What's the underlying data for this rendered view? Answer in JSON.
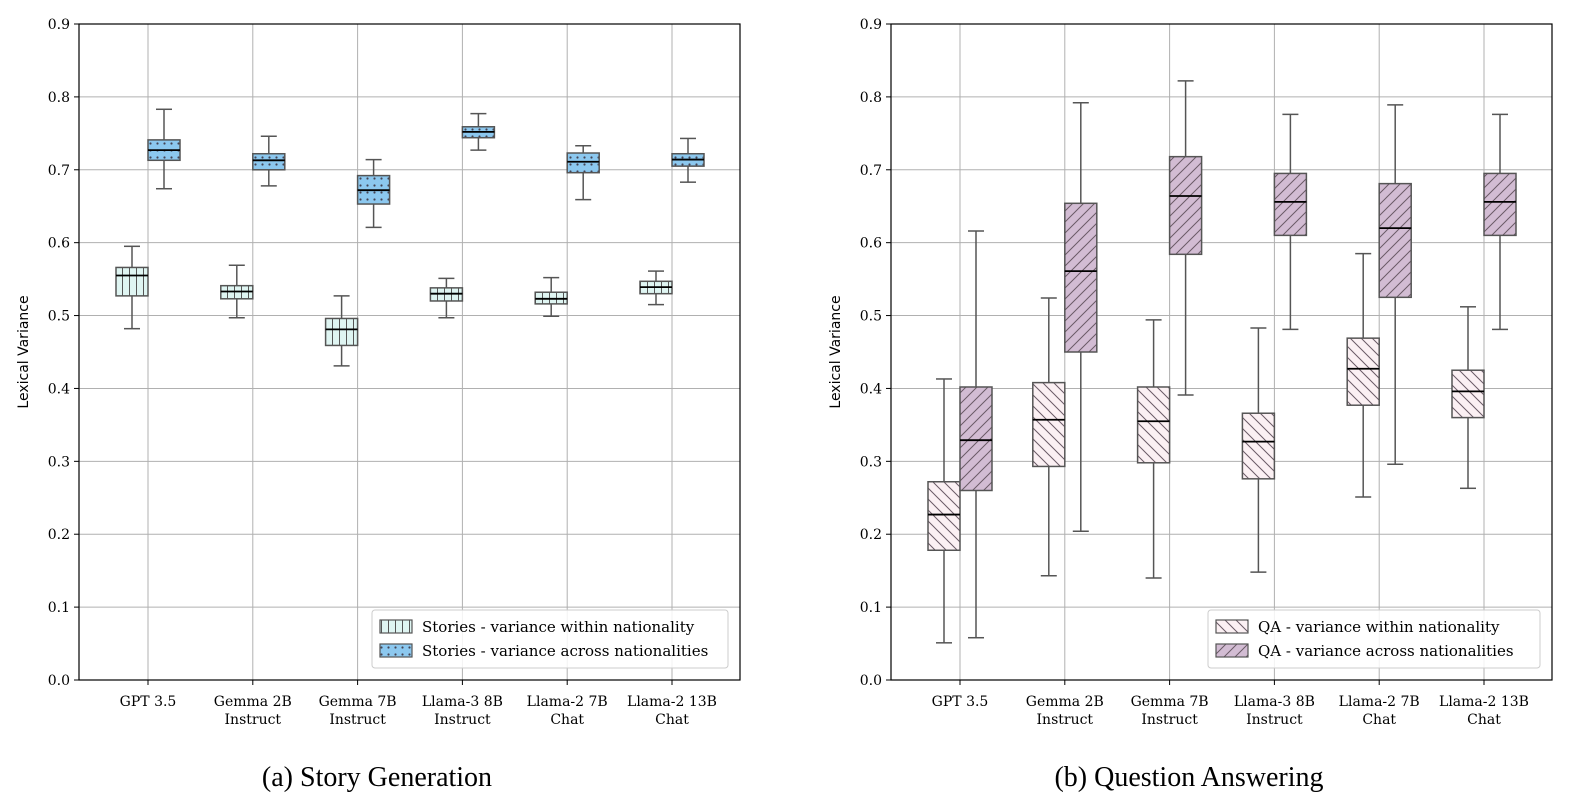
{
  "chart_data": [
    {
      "type": "boxplot",
      "caption": "(a) Story Generation",
      "ylabel": "Lexical Variance",
      "ylim": [
        0.0,
        0.9
      ],
      "yticks": [
        "0.0",
        "0.1",
        "0.2",
        "0.3",
        "0.4",
        "0.5",
        "0.6",
        "0.7",
        "0.8",
        "0.9"
      ],
      "grid": true,
      "legend_position": "lower-right",
      "categories": [
        [
          "GPT 3.5"
        ],
        [
          "Gemma 2B",
          "Instruct"
        ],
        [
          "Gemma 7B",
          "Instruct"
        ],
        [
          "Llama-3 8B",
          "Instruct"
        ],
        [
          "Llama-2 7B",
          "Chat"
        ],
        [
          "Llama-2 13B",
          "Chat"
        ]
      ],
      "series": [
        {
          "name": "Stories - variance within nationality",
          "fill": "#dff5f2",
          "hatch": "vertical",
          "boxes": [
            {
              "min": 0.482,
              "q1": 0.527,
              "median": 0.555,
              "q3": 0.566,
              "max": 0.595
            },
            {
              "min": 0.497,
              "q1": 0.523,
              "median": 0.533,
              "q3": 0.541,
              "max": 0.569
            },
            {
              "min": 0.431,
              "q1": 0.459,
              "median": 0.481,
              "q3": 0.496,
              "max": 0.527
            },
            {
              "min": 0.497,
              "q1": 0.52,
              "median": 0.53,
              "q3": 0.538,
              "max": 0.551
            },
            {
              "min": 0.499,
              "q1": 0.516,
              "median": 0.523,
              "q3": 0.532,
              "max": 0.552
            },
            {
              "min": 0.515,
              "q1": 0.53,
              "median": 0.539,
              "q3": 0.547,
              "max": 0.561
            }
          ]
        },
        {
          "name": "Stories - variance across nationalities",
          "fill": "#8cc8ef",
          "hatch": "dots",
          "boxes": [
            {
              "min": 0.674,
              "q1": 0.713,
              "median": 0.727,
              "q3": 0.741,
              "max": 0.783
            },
            {
              "min": 0.678,
              "q1": 0.7,
              "median": 0.713,
              "q3": 0.722,
              "max": 0.746
            },
            {
              "min": 0.621,
              "q1": 0.653,
              "median": 0.672,
              "q3": 0.692,
              "max": 0.714
            },
            {
              "min": 0.727,
              "q1": 0.744,
              "median": 0.752,
              "q3": 0.759,
              "max": 0.777
            },
            {
              "min": 0.659,
              "q1": 0.696,
              "median": 0.711,
              "q3": 0.723,
              "max": 0.733
            },
            {
              "min": 0.683,
              "q1": 0.705,
              "median": 0.714,
              "q3": 0.722,
              "max": 0.743
            }
          ]
        }
      ]
    },
    {
      "type": "boxplot",
      "caption": "(b) Question Answering",
      "ylabel": "Lexical Variance",
      "ylim": [
        0.0,
        0.9
      ],
      "yticks": [
        "0.0",
        "0.1",
        "0.2",
        "0.3",
        "0.4",
        "0.5",
        "0.6",
        "0.7",
        "0.8",
        "0.9"
      ],
      "grid": true,
      "legend_position": "lower-right",
      "categories": [
        [
          "GPT 3.5"
        ],
        [
          "Gemma 2B",
          "Instruct"
        ],
        [
          "Gemma 7B",
          "Instruct"
        ],
        [
          "Llama-3 8B",
          "Instruct"
        ],
        [
          "Llama-2 7B",
          "Chat"
        ],
        [
          "Llama-2 13B",
          "Chat"
        ]
      ],
      "series": [
        {
          "name": "QA - variance within nationality",
          "fill": "#fbf0f3",
          "hatch": "back-diagonal",
          "boxes": [
            {
              "min": 0.051,
              "q1": 0.178,
              "median": 0.227,
              "q3": 0.272,
              "max": 0.413
            },
            {
              "min": 0.143,
              "q1": 0.293,
              "median": 0.357,
              "q3": 0.408,
              "max": 0.524
            },
            {
              "min": 0.14,
              "q1": 0.298,
              "median": 0.355,
              "q3": 0.402,
              "max": 0.494
            },
            {
              "min": 0.148,
              "q1": 0.276,
              "median": 0.327,
              "q3": 0.366,
              "max": 0.483
            },
            {
              "min": 0.251,
              "q1": 0.377,
              "median": 0.427,
              "q3": 0.469,
              "max": 0.585
            },
            {
              "min": 0.263,
              "q1": 0.36,
              "median": 0.396,
              "q3": 0.425,
              "max": 0.512
            }
          ]
        },
        {
          "name": "QA - variance across nationalities",
          "fill": "#d2bcd3",
          "hatch": "forward-diagonal",
          "boxes": [
            {
              "min": 0.058,
              "q1": 0.26,
              "median": 0.329,
              "q3": 0.402,
              "max": 0.616
            },
            {
              "min": 0.204,
              "q1": 0.45,
              "median": 0.561,
              "q3": 0.654,
              "max": 0.792
            },
            {
              "min": 0.391,
              "q1": 0.584,
              "median": 0.664,
              "q3": 0.718,
              "max": 0.822
            },
            {
              "min": 0.481,
              "q1": 0.61,
              "median": 0.656,
              "q3": 0.695,
              "max": 0.776
            },
            {
              "min": 0.296,
              "q1": 0.525,
              "median": 0.62,
              "q3": 0.681,
              "max": 0.789
            },
            {
              "min": 0.481,
              "q1": 0.61,
              "median": 0.656,
              "q3": 0.695,
              "max": 0.776
            }
          ]
        }
      ]
    }
  ]
}
